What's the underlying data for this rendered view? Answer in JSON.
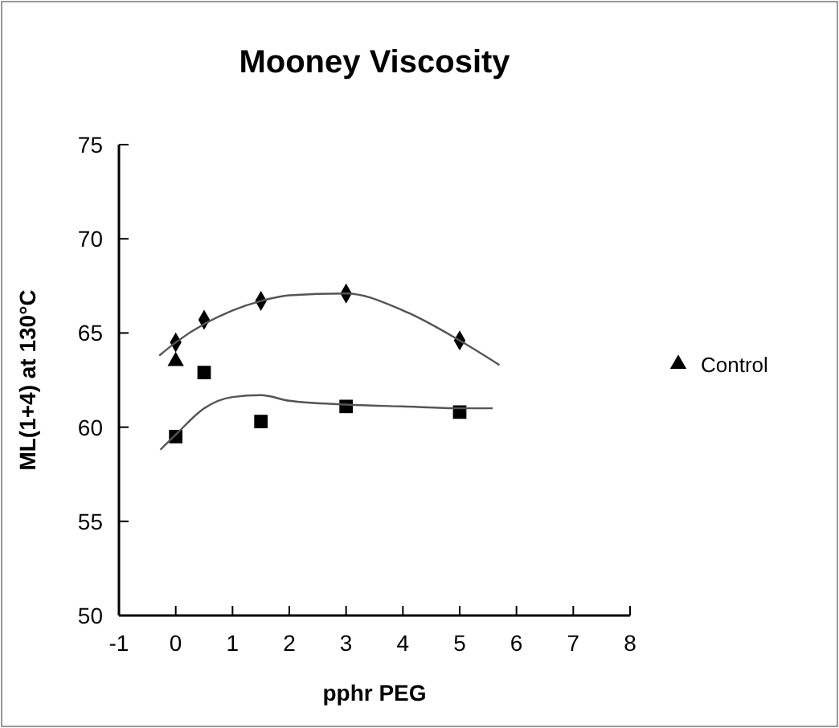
{
  "chart_data": {
    "type": "scatter",
    "title": "Mooney Viscosity",
    "xlabel": "pphr PEG",
    "ylabel": "ML(1+4) at 130°C",
    "xlim": [
      -1,
      8
    ],
    "xticks": [
      -1,
      0,
      1,
      2,
      3,
      4,
      5,
      6,
      7,
      8
    ],
    "ylim": [
      50,
      75
    ],
    "yticks": [
      50,
      55,
      60,
      65,
      70,
      75
    ],
    "grid": false,
    "legend": "right",
    "series": [
      {
        "marker": "square",
        "color": "#000000",
        "x": [
          0,
          0.5,
          1.5,
          3,
          5
        ],
        "values": [
          59.5,
          62.9,
          60.3,
          61.1,
          60.8
        ]
      },
      {
        "marker": "diamond",
        "color": "#000000",
        "x": [
          0,
          0.5,
          1.5,
          3,
          5
        ],
        "values": [
          64.5,
          65.7,
          66.7,
          67.1,
          64.6
        ]
      },
      {
        "name": "Control",
        "marker": "triangle",
        "color": "#000000",
        "x": [
          0
        ],
        "values": [
          63.5
        ]
      },
      {
        "type": "line",
        "marker": "none",
        "color": "#555555",
        "x": [
          -0.27,
          0,
          0.5,
          1,
          1.5,
          2,
          3,
          4,
          5,
          5.58
        ],
        "values": [
          58.8,
          59.6,
          61.0,
          61.6,
          61.7,
          61.4,
          61.2,
          61.1,
          61.0,
          61.0
        ]
      },
      {
        "type": "line",
        "marker": "none",
        "color": "#555555",
        "x": [
          -0.29,
          0,
          1,
          1.5,
          2,
          3,
          4,
          5,
          5.7
        ],
        "values": [
          63.8,
          64.5,
          66.2,
          66.7,
          67.0,
          67.1,
          66.2,
          64.6,
          63.3
        ]
      }
    ]
  }
}
